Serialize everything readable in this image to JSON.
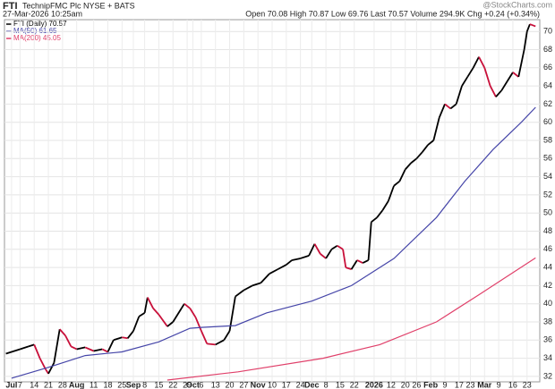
{
  "chart_data": {
    "type": "line",
    "header_symbol": "FTI",
    "header_name": "TechnipFMC Plc NYSE + BATS",
    "header_date": "27-Mar-2026 10:25am",
    "header_stats": "Open 70.08 High 70.87 Low 69.76 Last 70.57 Volume 294.9K Chg +0.24 (+0.34%)",
    "watermark": "@StockCharts.com",
    "xlim": [
      -2.5,
      186.5
    ],
    "ylim": [
      31.4,
      71.3
    ],
    "yticks": [
      32,
      34,
      36,
      38,
      40,
      42,
      44,
      46,
      48,
      50,
      52,
      54,
      56,
      58,
      60,
      62,
      64,
      66,
      68,
      70
    ],
    "xticks": [
      {
        "value": 0,
        "label": "Jul",
        "bold": true
      },
      {
        "value": 3,
        "label": "7"
      },
      {
        "value": 8,
        "label": "14"
      },
      {
        "value": 13,
        "label": "21"
      },
      {
        "value": 18,
        "label": "28"
      },
      {
        "value": 23,
        "label": "Aug",
        "bold": true
      },
      {
        "value": 29,
        "label": "11"
      },
      {
        "value": 34,
        "label": "18"
      },
      {
        "value": 39,
        "label": "25"
      },
      {
        "value": 43,
        "label": "Sep",
        "bold": true
      },
      {
        "value": 47,
        "label": "8"
      },
      {
        "value": 52,
        "label": "15"
      },
      {
        "value": 57,
        "label": "22"
      },
      {
        "value": 62,
        "label": "29"
      },
      {
        "value": 64,
        "label": "Oct",
        "bold": true
      },
      {
        "value": 67,
        "label": "6"
      },
      {
        "value": 72,
        "label": "13"
      },
      {
        "value": 77,
        "label": "20"
      },
      {
        "value": 82,
        "label": "27"
      },
      {
        "value": 87,
        "label": "Nov",
        "bold": true
      },
      {
        "value": 92,
        "label": "10"
      },
      {
        "value": 97,
        "label": "17"
      },
      {
        "value": 102,
        "label": "24"
      },
      {
        "value": 106,
        "label": "Dec",
        "bold": true
      },
      {
        "value": 111,
        "label": "8"
      },
      {
        "value": 116,
        "label": "15"
      },
      {
        "value": 121,
        "label": "22"
      },
      {
        "value": 128,
        "label": "2026",
        "bold": true
      },
      {
        "value": 134,
        "label": "12"
      },
      {
        "value": 139,
        "label": "20"
      },
      {
        "value": 143,
        "label": "26"
      },
      {
        "value": 148,
        "label": "Feb",
        "bold": true
      },
      {
        "value": 153,
        "label": "9"
      },
      {
        "value": 158,
        "label": "17"
      },
      {
        "value": 162,
        "label": "23"
      },
      {
        "value": 167,
        "label": "Mar",
        "bold": true
      },
      {
        "value": 172,
        "label": "9"
      },
      {
        "value": 177,
        "label": "16"
      },
      {
        "value": 182,
        "label": "23"
      }
    ],
    "grid": true,
    "series": [
      {
        "name": "FTI (Daily) 70.57",
        "color": "#000000",
        "up_color": "#000000",
        "down_color": "#c8103a",
        "x": [
          -2,
          3,
          6,
          8,
          10,
          12,
          13,
          15,
          17,
          19,
          21,
          23,
          26,
          29,
          32,
          34,
          36,
          39,
          41,
          43,
          45,
          47,
          48,
          50,
          52,
          55,
          57,
          60,
          61,
          63,
          65,
          67,
          69,
          72,
          75,
          77,
          79,
          82,
          85,
          88,
          91,
          94,
          97,
          99,
          102,
          105,
          107,
          109,
          111,
          113,
          115,
          117,
          118,
          120,
          122,
          124,
          126,
          127,
          129,
          131,
          133,
          135,
          137,
          139,
          141,
          143,
          145,
          147,
          149,
          151,
          153,
          155,
          157,
          159,
          161,
          163,
          165,
          167,
          169,
          171,
          173,
          175,
          177,
          179,
          181,
          182,
          183,
          185
        ],
        "values": [
          34.5,
          35,
          35.3,
          35.5,
          34,
          32.8,
          32.3,
          33.5,
          37.2,
          36.5,
          35.3,
          35,
          35.2,
          34.8,
          35,
          34.7,
          36,
          36.3,
          36.2,
          37,
          38.6,
          39,
          40.7,
          39.5,
          38.8,
          37.5,
          38,
          39.5,
          40,
          39.5,
          38.5,
          37,
          35.6,
          35.5,
          36,
          37,
          40.8,
          41.5,
          42,
          42.3,
          43.3,
          43.8,
          44.3,
          44.8,
          45,
          45.3,
          46.6,
          45.5,
          45,
          46,
          46.4,
          46,
          44,
          43.8,
          44.8,
          44.5,
          44.8,
          49,
          49.5,
          50.3,
          51.3,
          53,
          53.5,
          54.8,
          55.5,
          56,
          56.7,
          57.5,
          58,
          60.5,
          62,
          61.5,
          62,
          64,
          65,
          66,
          67.2,
          66,
          64,
          62.8,
          63.5,
          64.5,
          65.5,
          65,
          68,
          70,
          70.8,
          70.57
        ]
      },
      {
        "name": "MA(50) 61.65",
        "color": "#4545a8",
        "x": [
          0,
          13,
          26,
          39,
          52,
          63,
          67,
          79,
          90,
          106,
          120,
          135,
          150,
          160,
          170,
          180,
          185
        ],
        "values": [
          31.8,
          33,
          34.3,
          34.7,
          35.8,
          37.3,
          37.4,
          37.6,
          39,
          40.3,
          42,
          45,
          49.5,
          53.5,
          57,
          60,
          61.65
        ]
      },
      {
        "name": "MA(200) 45.05",
        "color": "#e0406a",
        "x": [
          55,
          80,
          110,
          130,
          150,
          165,
          185
        ],
        "values": [
          31.6,
          32.5,
          34,
          35.5,
          38,
          41,
          45.05
        ]
      }
    ]
  }
}
